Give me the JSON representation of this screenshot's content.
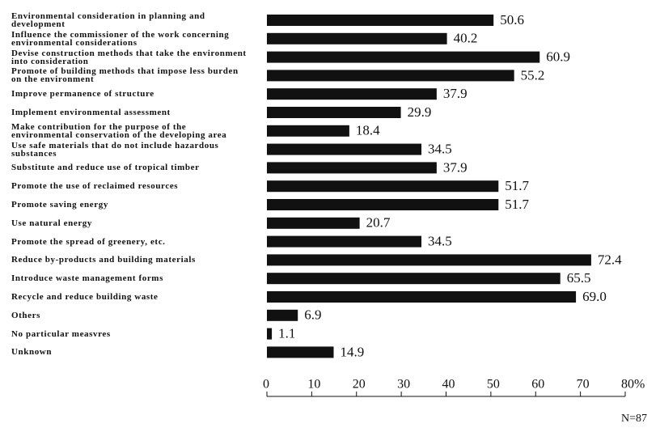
{
  "chart_data": {
    "type": "bar",
    "orientation": "horizontal",
    "categories": [
      "Environmental consideration in planning and development",
      "Influence the commissioner of the work concerning environmental considerations",
      "Devise construction methods that take the environment into consideration",
      "Promote of building methods that impose less burden on the environment",
      "Improve permanence of structure",
      "Implement environmental assessment",
      "Make contribution for the purpose of the environmental conservation of the developing area",
      "Use safe materials that do not include hazardous substances",
      "Substitute and reduce use of tropical timber",
      "Promote the use of reclaimed resources",
      "Promote saving energy",
      "Use natural energy",
      "Promote the spread of greenery, etc.",
      "Reduce by-products and building materials",
      "Introduce waste management forms",
      "Recycle and reduce building waste",
      "Others",
      "No particular measvres",
      "Unknown"
    ],
    "values": [
      50.6,
      40.2,
      60.9,
      55.2,
      37.9,
      29.9,
      18.4,
      34.5,
      37.9,
      51.7,
      51.7,
      20.7,
      34.5,
      72.4,
      65.5,
      69.0,
      6.9,
      1.1,
      14.9
    ],
    "value_labels": [
      "50.6",
      "40.2",
      "60.9",
      "55.2",
      "37.9",
      "29.9",
      "18.4",
      "34.5",
      "37.9",
      "51.7",
      "51.7",
      "20.7",
      "34.5",
      "72.4",
      "65.5",
      "69.0",
      "6.9",
      "1.1",
      "14.9"
    ],
    "color": "#111111",
    "xlim": [
      0,
      80
    ],
    "xticks": [
      0,
      10,
      20,
      30,
      40,
      50,
      60,
      70,
      {
        "value": 80,
        "label": "80%"
      }
    ],
    "annotation": "N=87"
  }
}
